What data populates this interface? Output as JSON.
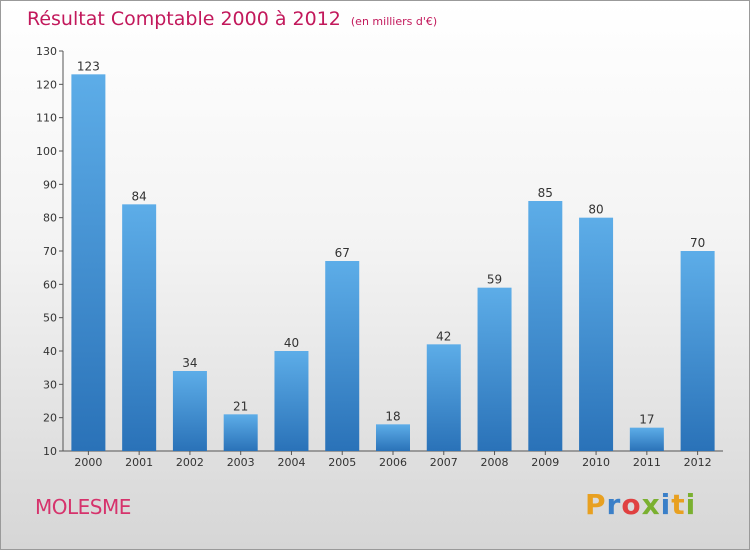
{
  "title": "Résultat Comptable 2000 à 2012",
  "unit": "(en milliers d'€)",
  "commune": "MOLESME",
  "logo": {
    "letters": [
      "P",
      "r",
      "o",
      "x",
      "i",
      "t",
      "i"
    ],
    "colors": [
      "#e8a020",
      "#3a7fc8",
      "#e04040",
      "#7ab030",
      "#3a7fc8",
      "#e8a020",
      "#7ab030"
    ]
  },
  "colors": {
    "bar_top": "#5dade8",
    "bar_bottom": "#2a72b8",
    "title": "#c2185b",
    "axis": "#555555"
  },
  "chart_data": {
    "type": "bar",
    "categories": [
      "2000",
      "2001",
      "2002",
      "2003",
      "2004",
      "2005",
      "2006",
      "2007",
      "2008",
      "2009",
      "2010",
      "2011",
      "2012"
    ],
    "values": [
      123,
      84,
      34,
      21,
      40,
      67,
      18,
      42,
      59,
      85,
      80,
      17,
      70
    ],
    "ylim": [
      10,
      130
    ],
    "yticks": [
      10,
      20,
      30,
      40,
      50,
      60,
      70,
      80,
      90,
      100,
      110,
      120,
      130
    ],
    "title": "Résultat Comptable 2000 à 2012",
    "xlabel": "",
    "ylabel": "",
    "grid": false
  }
}
